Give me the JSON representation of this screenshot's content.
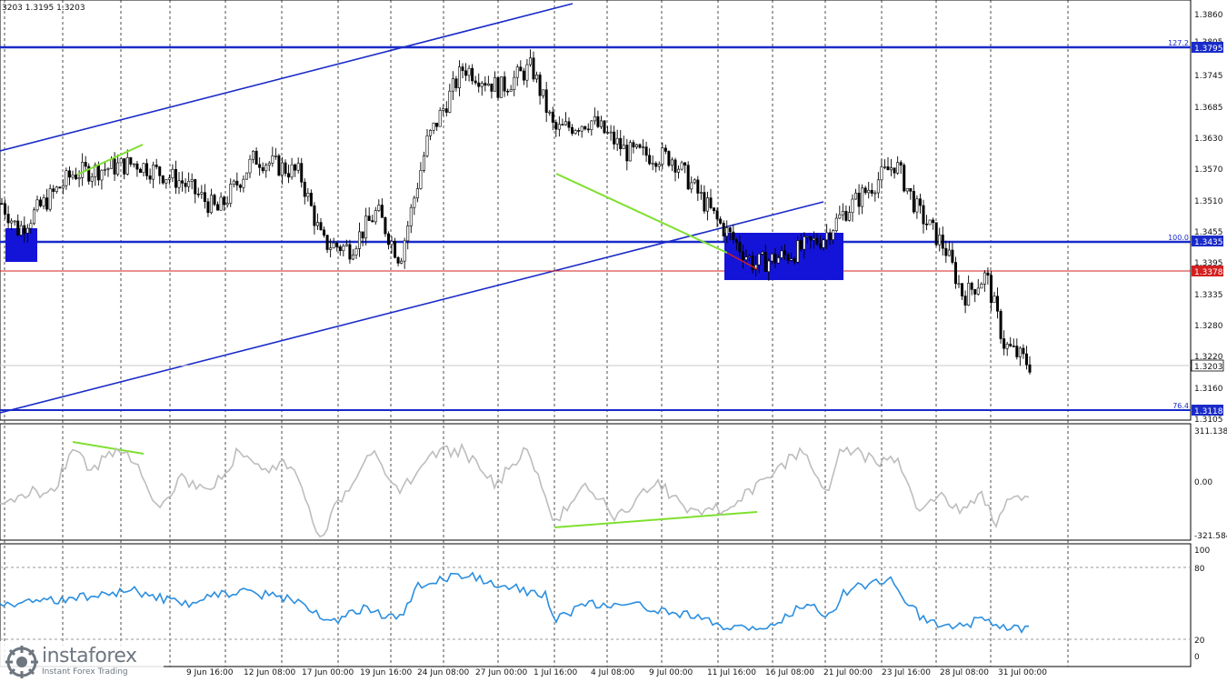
{
  "header": {
    "ohlc_text": "3203 1.3195 1.3203"
  },
  "price_axis": {
    "labels": [
      "1.3860",
      "1.3805",
      "1.3745",
      "1.3685",
      "1.3630",
      "1.3570",
      "1.3510",
      "1.3455",
      "1.3395",
      "1.3335",
      "1.3280",
      "1.3220",
      "1.3160",
      "1.3105"
    ],
    "current": "1.3203"
  },
  "levels": [
    {
      "name": "fib-127-2",
      "fib": "127.2",
      "price": "1.3795"
    },
    {
      "name": "fib-100",
      "fib": "100.0",
      "price": "1.3435"
    },
    {
      "name": "red-level",
      "fib": "",
      "price": "1.3378"
    },
    {
      "name": "fib-76-4",
      "fib": "76.4",
      "price": "1.3118"
    }
  ],
  "time_axis": [
    "9 Jun 16:00",
    "12 Jun 08:00",
    "17 Jun 00:00",
    "19 Jun 16:00",
    "24 Jun 08:00",
    "27 Jun 00:00",
    "1 Jul 16:00",
    "4 Jul 08:00",
    "9 Jul 00:00",
    "11 Jul 16:00",
    "16 Jul 08:00",
    "21 Jul 00:00",
    "23 Jul 16:00",
    "28 Jul 08:00",
    "31 Jul 00:00"
  ],
  "cci": {
    "max": "311.138",
    "zero": "0.00",
    "min": "-321.584"
  },
  "rsi": {
    "labels": [
      "100",
      "80",
      "20",
      "0"
    ]
  },
  "colors": {
    "level_blue": "#1a2bc8",
    "red_level": "#d42020",
    "divergence": "#7fe030",
    "cci_line": "#bdbdbd",
    "rsi_line": "#2a8ee0"
  },
  "watermark": {
    "brand": "instaforex",
    "tagline": "Instant Forex Trading"
  },
  "chart_data": {
    "type": "candlestick",
    "symbol_hint": "",
    "y_axis_price_range": [
      1.3105,
      1.386
    ],
    "horizontal_levels": [
      1.3795,
      1.3435,
      1.3378,
      1.3118
    ],
    "current_price": 1.3203,
    "close_path": [
      [
        "9 Jun 16:00",
        1.356
      ],
      [
        "12 Jun 08:00",
        1.3575
      ],
      [
        "17 Jun 00:00",
        1.346
      ],
      [
        "19 Jun 16:00",
        1.343
      ],
      [
        "24 Jun 08:00",
        1.372
      ],
      [
        "27 Jun 00:00",
        1.373
      ],
      [
        "1 Jul 16:00",
        1.363
      ],
      [
        "4 Jul 08:00",
        1.364
      ],
      [
        "9 Jul 00:00",
        1.36
      ],
      [
        "11 Jul 16:00",
        1.346
      ],
      [
        "16 Jul 08:00",
        1.3395
      ],
      [
        "21 Jul 00:00",
        1.3475
      ],
      [
        "23 Jul 16:00",
        1.358
      ],
      [
        "28 Jul 08:00",
        1.336
      ],
      [
        "31 Jul 00:00",
        1.3205
      ]
    ]
  }
}
